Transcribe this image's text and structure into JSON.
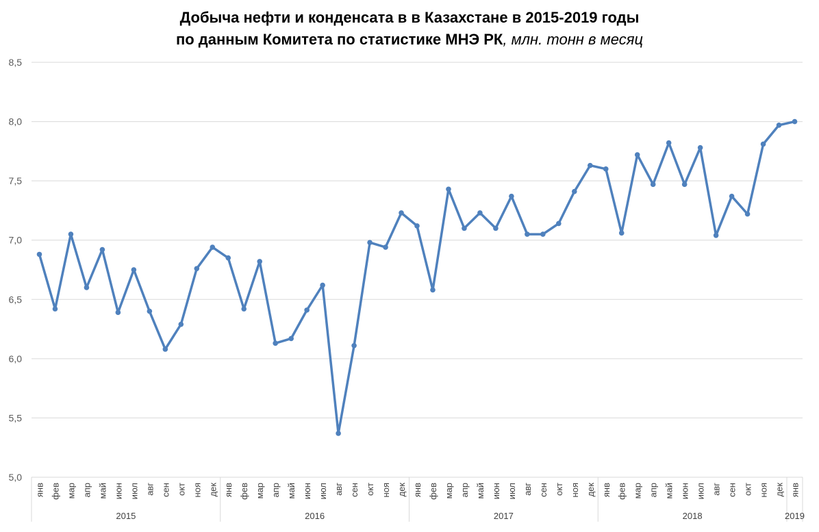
{
  "chart_data": {
    "type": "line",
    "title": {
      "line1": "Добыча нефти и конденсата в в Казахстане в 2015-2019 годы",
      "line2_main": "по данным Комитета по статистике МНЭ РК",
      "line2_unit": ", млн. тонн в месяц"
    },
    "xlabel": "",
    "ylabel": "",
    "ylim": [
      5.0,
      8.5
    ],
    "yticks": [
      "5,0",
      "5,5",
      "6,0",
      "6,5",
      "7,0",
      "7,5",
      "8,0",
      "8,5"
    ],
    "ytick_values": [
      5.0,
      5.5,
      6.0,
      6.5,
      7.0,
      7.5,
      8.0,
      8.5
    ],
    "grid": true,
    "legend": "none",
    "line_color": "#4f81bd",
    "grid_color": "#d9d9d9",
    "groups": [
      {
        "label": "2015",
        "count": 12
      },
      {
        "label": "2016",
        "count": 12
      },
      {
        "label": "2017",
        "count": 12
      },
      {
        "label": "2018",
        "count": 12
      },
      {
        "label": "2019",
        "count": 1
      }
    ],
    "categories": [
      "янв",
      "фев",
      "мар",
      "апр",
      "май",
      "июн",
      "июл",
      "авг",
      "сен",
      "окт",
      "ноя",
      "дек",
      "янв",
      "фев",
      "мар",
      "апр",
      "май",
      "июн",
      "июл",
      "авг",
      "сен",
      "окт",
      "ноя",
      "дек",
      "янв",
      "фев",
      "мар",
      "апр",
      "май",
      "июн",
      "июл",
      "авг",
      "сен",
      "окт",
      "ноя",
      "дек",
      "янв",
      "фев",
      "мар",
      "апр",
      "май",
      "июн",
      "июл",
      "авг",
      "сен",
      "окт",
      "ноя",
      "дек",
      "янв"
    ],
    "series": [
      {
        "values": [
          6.88,
          6.42,
          7.05,
          6.6,
          6.92,
          6.39,
          6.75,
          6.4,
          6.08,
          6.29,
          6.76,
          6.94,
          6.85,
          6.42,
          6.82,
          6.13,
          6.17,
          6.41,
          6.62,
          5.37,
          6.11,
          6.98,
          6.94,
          7.23,
          7.12,
          6.58,
          7.43,
          7.1,
          7.23,
          7.1,
          7.37,
          7.05,
          7.05,
          7.14,
          7.41,
          7.63,
          7.6,
          7.06,
          7.72,
          7.47,
          7.82,
          7.47,
          7.78,
          7.04,
          7.37,
          7.22,
          7.81,
          7.97,
          8.0
        ]
      }
    ]
  }
}
